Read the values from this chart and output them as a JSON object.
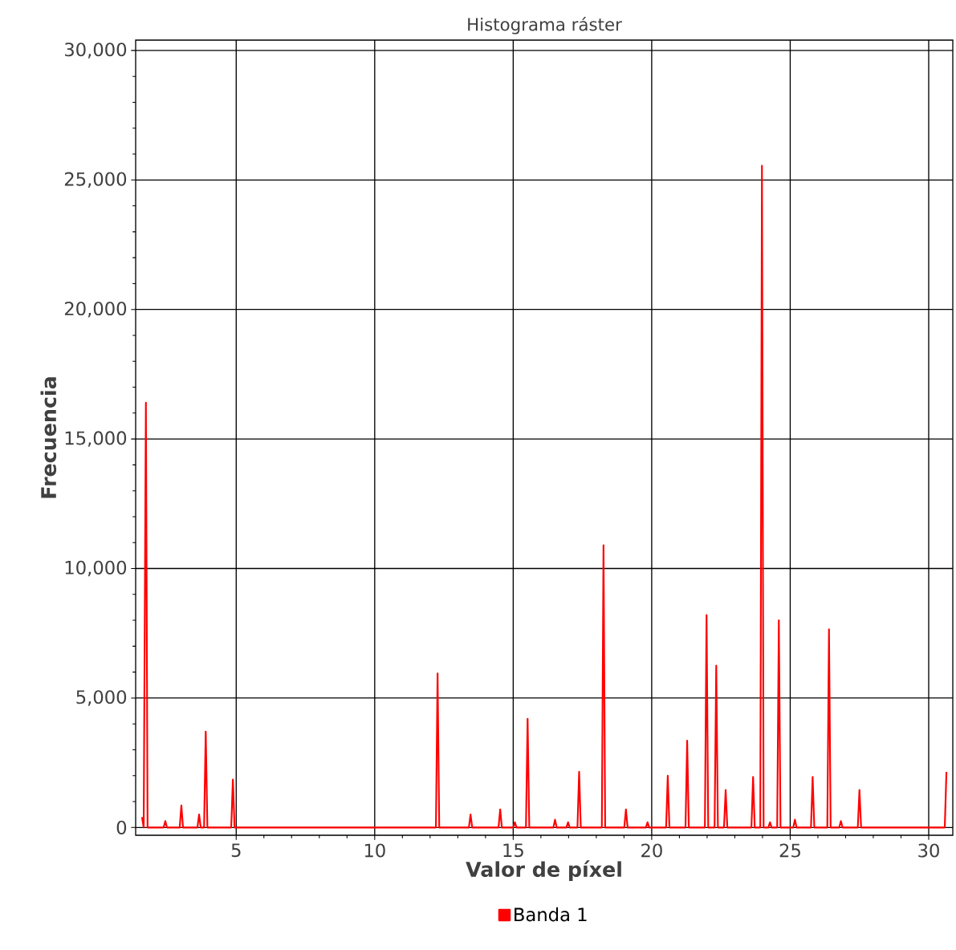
{
  "chart_data": {
    "type": "line",
    "title": "Histograma ráster",
    "xlabel": "Valor de píxel",
    "ylabel": "Frecuencia",
    "xlim": [
      1.37,
      30.87
    ],
    "ylim": [
      -300,
      30400
    ],
    "xticks": [
      5,
      10,
      15,
      20,
      25,
      30
    ],
    "yticks": [
      {
        "value": 0,
        "label": "0"
      },
      {
        "value": 5000,
        "label": "5,000"
      },
      {
        "value": 10000,
        "label": "10,000"
      },
      {
        "value": 15000,
        "label": "15,000"
      },
      {
        "value": 20000,
        "label": "20,000"
      },
      {
        "value": 25000,
        "label": "25,000"
      },
      {
        "value": 30000,
        "label": "30,000"
      }
    ],
    "grid": true,
    "legend": "bottom",
    "marker": "none",
    "line_style": "solid",
    "series": [
      {
        "name": "Banda 1",
        "color": "#ff0000",
        "x": [
          1.6,
          1.66,
          1.74,
          1.8,
          2.38,
          2.44,
          2.5,
          2.96,
          3.02,
          3.08,
          3.6,
          3.66,
          3.72,
          3.84,
          3.9,
          3.96,
          4.82,
          4.88,
          4.94,
          12.21,
          12.27,
          12.33,
          13.4,
          13.46,
          13.52,
          14.47,
          14.53,
          14.59,
          15.0,
          15.06,
          15.12,
          15.46,
          15.52,
          15.58,
          16.45,
          16.51,
          16.57,
          16.92,
          16.98,
          17.04,
          17.32,
          17.38,
          17.44,
          18.2,
          18.26,
          18.32,
          19.01,
          19.07,
          19.13,
          19.79,
          19.85,
          19.91,
          20.52,
          20.58,
          20.64,
          21.22,
          21.28,
          21.34,
          21.92,
          21.98,
          22.04,
          22.27,
          22.33,
          22.39,
          22.61,
          22.67,
          22.73,
          23.6,
          23.66,
          23.72,
          23.92,
          23.98,
          24.04,
          24.21,
          24.27,
          24.33,
          24.53,
          24.59,
          24.65,
          25.11,
          25.17,
          25.23,
          25.75,
          25.81,
          25.87,
          26.34,
          26.4,
          26.46,
          26.77,
          26.83,
          26.89,
          27.44,
          27.5,
          27.56,
          30.58,
          30.64
        ],
        "values": [
          400,
          0,
          16400,
          0,
          0,
          250,
          0,
          0,
          850,
          0,
          0,
          500,
          0,
          0,
          3700,
          0,
          0,
          1850,
          0,
          0,
          5950,
          0,
          0,
          500,
          0,
          0,
          700,
          0,
          0,
          200,
          0,
          0,
          4200,
          0,
          0,
          300,
          0,
          0,
          200,
          0,
          0,
          2150,
          0,
          0,
          10900,
          0,
          0,
          700,
          0,
          0,
          200,
          0,
          0,
          2000,
          0,
          0,
          3350,
          0,
          0,
          8200,
          0,
          0,
          6250,
          0,
          0,
          1450,
          0,
          0,
          1950,
          0,
          0,
          25550,
          0,
          0,
          200,
          0,
          0,
          8000,
          0,
          0,
          300,
          0,
          0,
          1950,
          0,
          0,
          7650,
          0,
          0,
          250,
          0,
          0,
          1450,
          0,
          0,
          2150
        ]
      }
    ]
  }
}
